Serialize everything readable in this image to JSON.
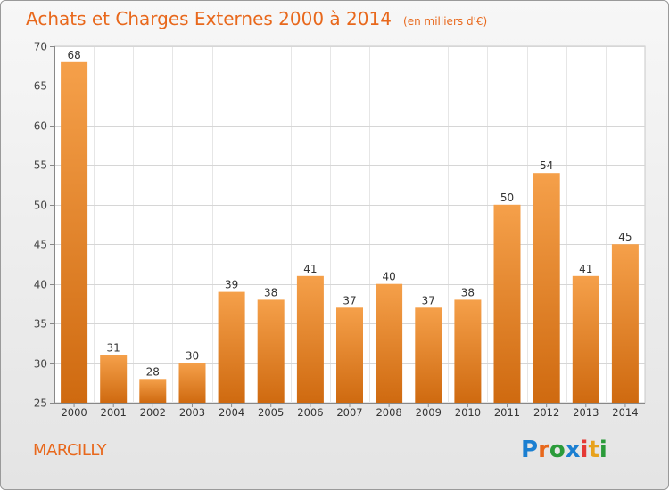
{
  "chart_data": {
    "type": "bar",
    "title": "Achats et Charges Externes 2000 à 2014",
    "unit_note": "(en milliers d'€)",
    "categories": [
      "2000",
      "2001",
      "2002",
      "2003",
      "2004",
      "2005",
      "2006",
      "2007",
      "2008",
      "2009",
      "2010",
      "2011",
      "2012",
      "2013",
      "2014"
    ],
    "values": [
      68,
      31,
      28,
      30,
      39,
      38,
      41,
      37,
      40,
      37,
      38,
      50,
      54,
      41,
      45
    ],
    "ylim": [
      25,
      70
    ],
    "yticks": [
      25,
      30,
      35,
      40,
      45,
      50,
      55,
      60,
      65,
      70
    ],
    "grid": true,
    "bar_color_top": "#f5a04a",
    "bar_color_bottom": "#cf6a10"
  },
  "footer": {
    "commune": "MARCILLY",
    "logo_text": "Proxiti",
    "logo_colors": [
      "#1b7fd1",
      "#e8681c",
      "#2b9b3a",
      "#1b7fd1",
      "#e53935",
      "#e8a21c",
      "#2b9b3a"
    ]
  },
  "colors": {
    "accent": "#e8681c"
  }
}
